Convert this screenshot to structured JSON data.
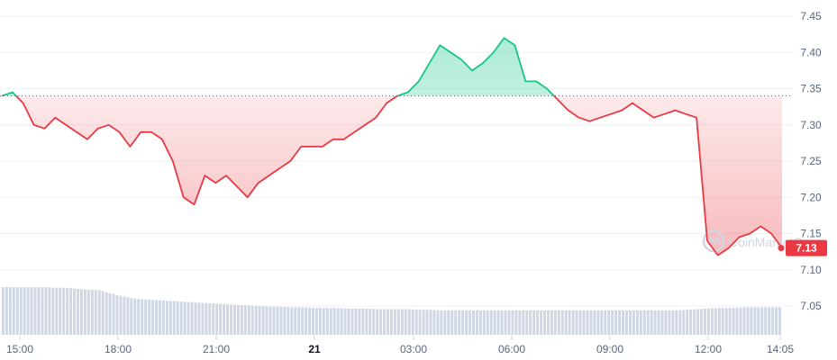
{
  "colors": {
    "up": "#16c784",
    "down": "#ea3943",
    "grid": "#eff2f5",
    "baseline": "#58667e",
    "volume": "#cfd6e4",
    "axis_text": "#58667e",
    "watermark": "#cfd6e4"
  },
  "watermark": {
    "text": "CoinMarketCap",
    "icon": "coinmarketcap-logo-icon"
  },
  "price_badge": {
    "label": "7.13"
  },
  "chart_data": {
    "type": "line",
    "baseline": 7.34,
    "ylim": [
      7.0,
      7.47
    ],
    "y_ticks": [
      "7.45",
      "7.40",
      "7.35",
      "7.30",
      "7.25",
      "7.20",
      "7.15",
      "7.10",
      "7.05"
    ],
    "x_ticks": [
      "15:00",
      "18:00",
      "21:00",
      "21",
      "03:00",
      "06:00",
      "09:00",
      "12:00",
      "14:05"
    ],
    "x_ticks_bold": [
      "21"
    ],
    "x": [
      "14:05",
      "14:30",
      "14:50",
      "15:10",
      "15:30",
      "15:50",
      "16:10",
      "16:30",
      "16:50",
      "17:10",
      "17:30",
      "17:50",
      "18:10",
      "18:30",
      "18:50",
      "19:10",
      "19:30",
      "19:50",
      "20:10",
      "20:30",
      "20:50",
      "21:10",
      "21:30",
      "21:50",
      "22:10",
      "22:30",
      "22:50",
      "23:10",
      "23:30",
      "23:50",
      "00:10",
      "00:30",
      "00:50",
      "01:10",
      "01:30",
      "01:50",
      "02:10",
      "02:30",
      "02:50",
      "03:10",
      "03:30",
      "03:50",
      "04:10",
      "04:30",
      "04:50",
      "05:10",
      "05:30",
      "05:50",
      "06:10",
      "06:30",
      "06:50",
      "07:10",
      "07:30",
      "07:50",
      "08:10",
      "08:30",
      "08:50",
      "09:10",
      "09:30",
      "09:50",
      "10:10",
      "10:30",
      "10:50",
      "11:10",
      "11:30",
      "11:50",
      "12:00",
      "12:10",
      "12:30",
      "12:50",
      "13:10",
      "13:30",
      "13:50",
      "14:05"
    ],
    "price": [
      7.34,
      7.345,
      7.33,
      7.3,
      7.295,
      7.31,
      7.3,
      7.29,
      7.28,
      7.295,
      7.3,
      7.29,
      7.27,
      7.29,
      7.29,
      7.28,
      7.25,
      7.2,
      7.19,
      7.23,
      7.22,
      7.23,
      7.215,
      7.2,
      7.22,
      7.23,
      7.24,
      7.25,
      7.27,
      7.27,
      7.27,
      7.28,
      7.28,
      7.29,
      7.3,
      7.31,
      7.33,
      7.34,
      7.345,
      7.36,
      7.385,
      7.41,
      7.4,
      7.39,
      7.375,
      7.385,
      7.4,
      7.42,
      7.41,
      7.36,
      7.36,
      7.35,
      7.335,
      7.32,
      7.31,
      7.305,
      7.31,
      7.315,
      7.32,
      7.33,
      7.32,
      7.31,
      7.315,
      7.32,
      7.315,
      7.31,
      7.14,
      7.12,
      7.13,
      7.145,
      7.15,
      7.16,
      7.15,
      7.13
    ],
    "volume": [
      0.78,
      0.78,
      0.78,
      0.78,
      0.78,
      0.77,
      0.77,
      0.75,
      0.74,
      0.73,
      0.68,
      0.64,
      0.6,
      0.58,
      0.57,
      0.56,
      0.55,
      0.54,
      0.53,
      0.52,
      0.51,
      0.5,
      0.49,
      0.48,
      0.47,
      0.46,
      0.46,
      0.45,
      0.45,
      0.44,
      0.44,
      0.44,
      0.43,
      0.43,
      0.43,
      0.42,
      0.42,
      0.42,
      0.42,
      0.41,
      0.41,
      0.4,
      0.4,
      0.4,
      0.4,
      0.4,
      0.4,
      0.4,
      0.4,
      0.4,
      0.4,
      0.4,
      0.4,
      0.4,
      0.4,
      0.4,
      0.4,
      0.4,
      0.4,
      0.4,
      0.4,
      0.4,
      0.4,
      0.4,
      0.41,
      0.42,
      0.43,
      0.44,
      0.44,
      0.45,
      0.45,
      0.45,
      0.45,
      0.45
    ]
  }
}
